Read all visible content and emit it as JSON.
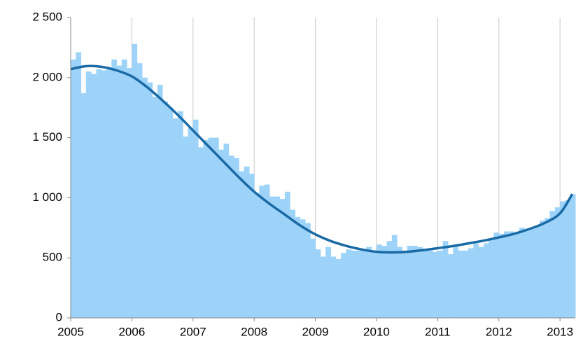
{
  "chart_data": {
    "type": "bar",
    "xlim": [
      2005,
      2013.25
    ],
    "xticks": [
      2005,
      2006,
      2007,
      2008,
      2009,
      2010,
      2011,
      2012,
      2013
    ],
    "ylim": [
      0,
      2500
    ],
    "yticks": [
      0,
      500,
      {
        "value": 1000,
        "label": "1 000"
      },
      {
        "value": 1500,
        "label": "1 500"
      },
      {
        "value": 2000,
        "label": "2 000"
      },
      {
        "value": 2500,
        "label": "2 500"
      }
    ],
    "grid": "x",
    "series": [
      {
        "type": "bar",
        "color": "#9dd3f9",
        "x": [
          2005,
          2005.083,
          2005.167,
          2005.25,
          2005.333,
          2005.417,
          2005.5,
          2005.583,
          2005.667,
          2005.75,
          2005.833,
          2005.917,
          2006,
          2006.083,
          2006.167,
          2006.25,
          2006.333,
          2006.417,
          2006.5,
          2006.583,
          2006.667,
          2006.75,
          2006.833,
          2006.917,
          2007,
          2007.083,
          2007.167,
          2007.25,
          2007.333,
          2007.417,
          2007.5,
          2007.583,
          2007.667,
          2007.75,
          2007.833,
          2007.917,
          2008,
          2008.083,
          2008.167,
          2008.25,
          2008.333,
          2008.417,
          2008.5,
          2008.583,
          2008.667,
          2008.75,
          2008.833,
          2008.917,
          2009,
          2009.083,
          2009.167,
          2009.25,
          2009.333,
          2009.417,
          2009.5,
          2009.583,
          2009.667,
          2009.75,
          2009.833,
          2009.917,
          2010,
          2010.083,
          2010.167,
          2010.25,
          2010.333,
          2010.417,
          2010.5,
          2010.583,
          2010.667,
          2010.75,
          2010.833,
          2010.917,
          2011,
          2011.083,
          2011.167,
          2011.25,
          2011.333,
          2011.417,
          2011.5,
          2011.583,
          2011.667,
          2011.75,
          2011.833,
          2011.917,
          2012,
          2012.083,
          2012.167,
          2012.25,
          2012.333,
          2012.417,
          2012.5,
          2012.583,
          2012.667,
          2012.75,
          2012.833,
          2012.917,
          2013,
          2013.083,
          2013.167
        ],
        "values": [
          2150,
          2210,
          1870,
          2050,
          2030,
          2070,
          2060,
          2070,
          2150,
          2100,
          2150,
          2080,
          2280,
          2120,
          2000,
          1960,
          1840,
          1940,
          1800,
          1750,
          1660,
          1720,
          1510,
          1580,
          1650,
          1420,
          1480,
          1500,
          1500,
          1400,
          1450,
          1350,
          1330,
          1220,
          1260,
          1200,
          1040,
          1100,
          1110,
          1010,
          1010,
          990,
          1050,
          900,
          840,
          820,
          790,
          660,
          570,
          510,
          590,
          510,
          490,
          540,
          570,
          560,
          560,
          570,
          590,
          560,
          610,
          600,
          640,
          690,
          590,
          560,
          600,
          600,
          590,
          560,
          560,
          550,
          560,
          640,
          530,
          600,
          560,
          560,
          580,
          620,
          590,
          620,
          660,
          710,
          700,
          720,
          720,
          710,
          750,
          740,
          740,
          760,
          810,
          830,
          890,
          920,
          970,
          980,
          1030
        ]
      },
      {
        "type": "line",
        "color": "#1a6aa5",
        "x": [
          2005,
          2005.25,
          2005.5,
          2005.75,
          2006,
          2006.25,
          2006.5,
          2006.75,
          2007,
          2007.25,
          2007.5,
          2007.75,
          2008,
          2008.25,
          2008.5,
          2008.75,
          2009,
          2009.25,
          2009.5,
          2009.75,
          2010,
          2010.25,
          2010.5,
          2010.75,
          2011,
          2011.25,
          2011.5,
          2011.75,
          2012,
          2012.25,
          2012.5,
          2012.75,
          2013,
          2013.2
        ],
        "values": [
          2070,
          2095,
          2090,
          2060,
          2010,
          1920,
          1810,
          1690,
          1560,
          1430,
          1300,
          1170,
          1050,
          950,
          860,
          770,
          695,
          640,
          600,
          570,
          550,
          545,
          550,
          563,
          580,
          598,
          620,
          643,
          670,
          700,
          740,
          790,
          870,
          1030
        ]
      }
    ]
  }
}
